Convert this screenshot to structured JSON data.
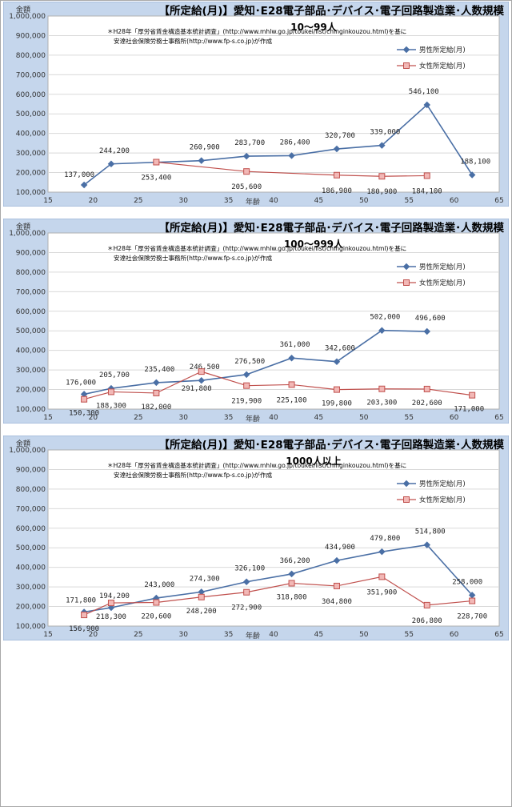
{
  "colors": {
    "outer_bg": "#c5d6ec",
    "plot_bg": "#ffffff",
    "male": "#4a6fa5",
    "female": "#c0504d",
    "female_fill": "#f2b8b6",
    "grid": "#d9d9d9"
  },
  "chart_data": [
    {
      "type": "line",
      "title": "【所定給(月)】愛知･E28電子部品･デバイス･電子回路製造業･人数規模",
      "subtitle": "10～99人",
      "note_lines": [
        "＊H28年「厚労省賃金構造基本統計調査」(http://www.mhlw.go.jp/toukei/list/chinginkouzou.html)を基に",
        "安達社会保険労務士事務所(http://www.fp-s.co.jp)が作成"
      ],
      "ylabel": "金額",
      "xlabel": "年齢",
      "xlim": [
        15,
        65
      ],
      "ylim": [
        100000,
        1000000
      ],
      "x_ticks": [
        "15",
        "20",
        "25",
        "30",
        "35",
        "40",
        "45",
        "50",
        "55",
        "60",
        "65"
      ],
      "y_ticks": [
        "100,000",
        "200,000",
        "300,000",
        "400,000",
        "500,000",
        "600,000",
        "700,000",
        "800,000",
        "900,000",
        "1,000,000"
      ],
      "legend_position": "top-right",
      "series": [
        {
          "name": "男性所定給(月)",
          "x": [
            19,
            22,
            32,
            37,
            42,
            47,
            52,
            57,
            62
          ],
          "y": [
            137000,
            244200,
            260900,
            283700,
            286400,
            320700,
            339000,
            546100,
            188100
          ],
          "labels": [
            "137,000",
            "244,200",
            "260,900",
            "283,700",
            "286,400",
            "320,700",
            "339,000",
            "546,100",
            "188,100"
          ]
        },
        {
          "name": "女性所定給(月)",
          "x": [
            27,
            37,
            47,
            52,
            57
          ],
          "y": [
            253400,
            205600,
            186900,
            180900,
            184100
          ],
          "labels": [
            "253,400",
            "205,600",
            "186,900",
            "180,900",
            "184,100"
          ]
        }
      ]
    },
    {
      "type": "line",
      "title": "【所定給(月)】愛知･E28電子部品･デバイス･電子回路製造業･人数規模",
      "subtitle": "100～999人",
      "note_lines": [
        "＊H28年「厚労省賃金構造基本統計調査」(http://www.mhlw.go.jp/toukei/list/chinginkouzou.html)を基に",
        "安達社会保険労務士事務所(http://www.fp-s.co.jp)が作成"
      ],
      "ylabel": "金額",
      "xlabel": "年齢",
      "xlim": [
        15,
        65
      ],
      "ylim": [
        100000,
        1000000
      ],
      "x_ticks": [
        "15",
        "20",
        "25",
        "30",
        "35",
        "40",
        "45",
        "50",
        "55",
        "60",
        "65"
      ],
      "y_ticks": [
        "100,000",
        "200,000",
        "300,000",
        "400,000",
        "500,000",
        "600,000",
        "700,000",
        "800,000",
        "900,000",
        "1,000,000"
      ],
      "legend_position": "top-right",
      "series": [
        {
          "name": "男性所定給(月)",
          "x": [
            19,
            22,
            27,
            32,
            37,
            42,
            47,
            52,
            57
          ],
          "y": [
            176000,
            205700,
            235400,
            246500,
            276500,
            361000,
            342600,
            502000,
            496600
          ],
          "labels": [
            "176,000",
            "205,700",
            "235,400",
            "246,500",
            "276,500",
            "361,000",
            "342,600",
            "502,000",
            "496,600"
          ]
        },
        {
          "name": "女性所定給(月)",
          "x": [
            19,
            22,
            27,
            32,
            37,
            42,
            47,
            52,
            57,
            62
          ],
          "y": [
            150300,
            188300,
            182000,
            291800,
            219900,
            225100,
            199800,
            203300,
            202600,
            171000
          ],
          "labels": [
            "150,300",
            "188,300",
            "182,000",
            "291,800",
            "219,900",
            "225,100",
            "199,800",
            "203,300",
            "202,600",
            "171,000"
          ]
        }
      ]
    },
    {
      "type": "line",
      "title": "【所定給(月)】愛知･E28電子部品･デバイス･電子回路製造業･人数規模",
      "subtitle": "1000人以上",
      "note_lines": [
        "＊H28年「厚労省賃金構造基本統計調査」(http://www.mhlw.go.jp/toukei/list/chinginkouzou.html)を基に",
        "安達社会保険労務士事務所(http://www.fp-s.co.jp)が作成"
      ],
      "ylabel": "金額",
      "xlabel": "年齢",
      "xlim": [
        15,
        65
      ],
      "ylim": [
        100000,
        1000000
      ],
      "x_ticks": [
        "15",
        "20",
        "25",
        "30",
        "35",
        "40",
        "45",
        "50",
        "55",
        "60",
        "65"
      ],
      "y_ticks": [
        "100,000",
        "200,000",
        "300,000",
        "400,000",
        "500,000",
        "600,000",
        "700,000",
        "800,000",
        "900,000",
        "1,000,000"
      ],
      "legend_position": "top-right",
      "series": [
        {
          "name": "男性所定給(月)",
          "x": [
            19,
            22,
            27,
            32,
            37,
            42,
            47,
            52,
            57,
            62
          ],
          "y": [
            171800,
            194200,
            243000,
            274300,
            326100,
            366200,
            434900,
            479800,
            514800,
            258000
          ],
          "labels": [
            "171,800",
            "194,200",
            "243,000",
            "274,300",
            "326,100",
            "366,200",
            "434,900",
            "479,800",
            "514,800",
            "258,000"
          ]
        },
        {
          "name": "女性所定給(月)",
          "x": [
            19,
            22,
            27,
            32,
            37,
            42,
            47,
            52,
            57,
            62
          ],
          "y": [
            156900,
            218300,
            220600,
            248200,
            272900,
            318800,
            304800,
            351900,
            206800,
            228700
          ],
          "labels": [
            "156,900",
            "218,300",
            "220,600",
            "248,200",
            "272,900",
            "318,800",
            "304,800",
            "351,900",
            "206,800",
            "228,700"
          ]
        }
      ]
    }
  ]
}
